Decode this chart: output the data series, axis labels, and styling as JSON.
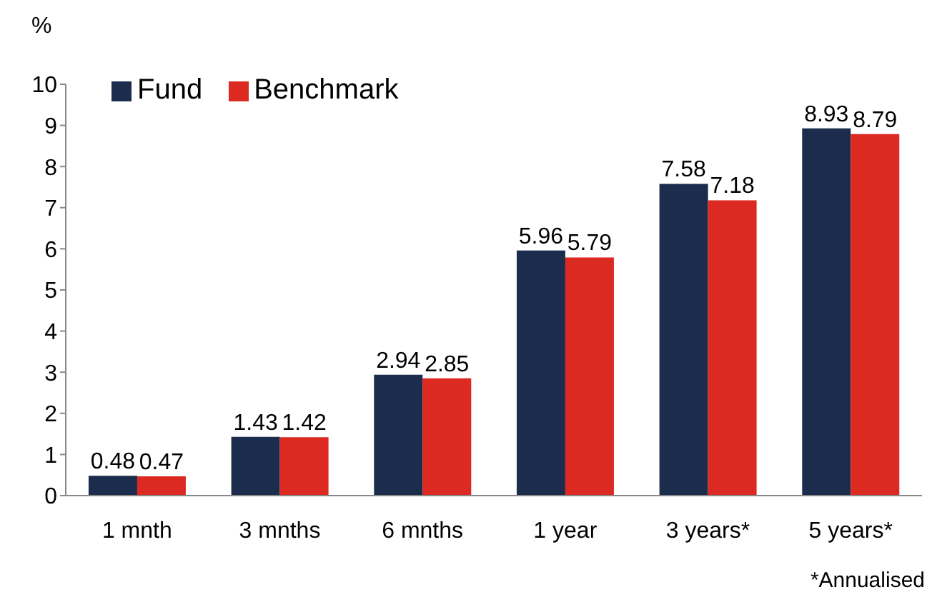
{
  "chart_data": {
    "type": "bar",
    "ylabel": "%",
    "categories": [
      "1 mnth",
      "3 mnths",
      "6 mnths",
      "1 year",
      "3 years*",
      "5 years*"
    ],
    "series": [
      {
        "name": "Fund",
        "color": "#1b2c4c",
        "values": [
          0.48,
          1.43,
          2.94,
          5.96,
          7.58,
          8.93
        ]
      },
      {
        "name": "Benchmark",
        "color": "#dc2a22",
        "values": [
          0.47,
          1.42,
          2.85,
          5.79,
          7.18,
          8.79
        ]
      }
    ],
    "ylim": [
      0,
      10
    ],
    "yticks": [
      0,
      1,
      2,
      3,
      4,
      5,
      6,
      7,
      8,
      9,
      10
    ],
    "grid": false,
    "legend": "top left",
    "data_labels": true,
    "annotations": [
      "*Annualised"
    ]
  }
}
